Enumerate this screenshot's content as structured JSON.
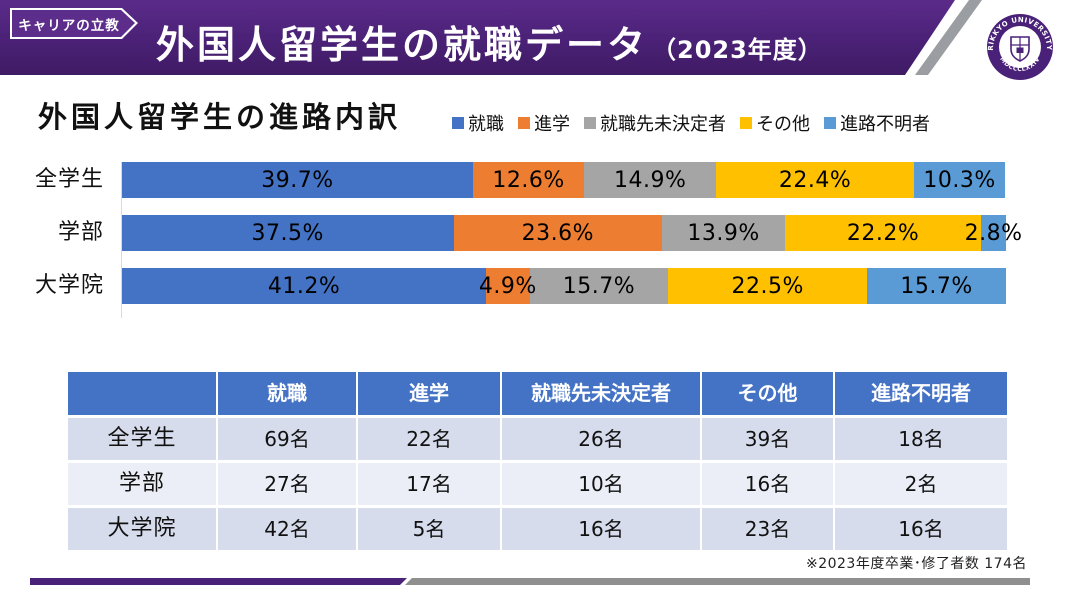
{
  "header": {
    "badge": "キャリアの立教",
    "title": "外国人留学生の就職データ",
    "title_suffix": "（2023年度）",
    "logo": {
      "top_text": "RIKKYO UNIVERSITY",
      "bottom_text": "MDCCCLXXIV"
    }
  },
  "chart_data": {
    "type": "bar",
    "orientation": "horizontal",
    "stacked": true,
    "title": "外国人留学生の進路内訳",
    "categories": [
      "全学生",
      "学部",
      "大学院"
    ],
    "series": [
      {
        "name": "就職",
        "color": "#4472C4",
        "values": [
          39.7,
          37.5,
          41.2
        ]
      },
      {
        "name": "進学",
        "color": "#ED7D31",
        "values": [
          12.6,
          23.6,
          4.9
        ]
      },
      {
        "name": "就職先未決定者",
        "color": "#A5A5A5",
        "values": [
          14.9,
          13.9,
          15.7
        ]
      },
      {
        "name": "その他",
        "color": "#FFC000",
        "values": [
          22.4,
          22.2,
          22.5
        ]
      },
      {
        "name": "進路不明者",
        "color": "#5B9BD5",
        "values": [
          10.3,
          2.8,
          15.7
        ]
      }
    ],
    "value_suffix": "%",
    "x_range": [
      0,
      100
    ],
    "grid": false,
    "legend_position": "top-right"
  },
  "table": {
    "columns": [
      "",
      "就職",
      "進学",
      "就職先未決定者",
      "その他",
      "進路不明者"
    ],
    "rows": [
      {
        "label": "全学生",
        "values": [
          "69名",
          "22名",
          "26名",
          "39名",
          "18名"
        ]
      },
      {
        "label": "学部",
        "values": [
          "27名",
          "17名",
          "10名",
          "16名",
          "2名"
        ]
      },
      {
        "label": "大学院",
        "values": [
          "42名",
          "5名",
          "16名",
          "23名",
          "16名"
        ]
      }
    ]
  },
  "footer": {
    "note": "※2023年度卒業･修了者数 174名"
  },
  "colors": {
    "brand_purple": "#4A2178",
    "banner_gradient_top": "#5B2B8A",
    "banner_gradient_bottom": "#3F1B64",
    "table_header": "#4472C4",
    "table_row_dark": "#D6DCEC",
    "table_row_light": "#EBEEF7",
    "stripe_gray": "#9A9DA1",
    "bottom_bar_gray": "#8F8F8F",
    "axis_line": "#D9D9D9"
  }
}
